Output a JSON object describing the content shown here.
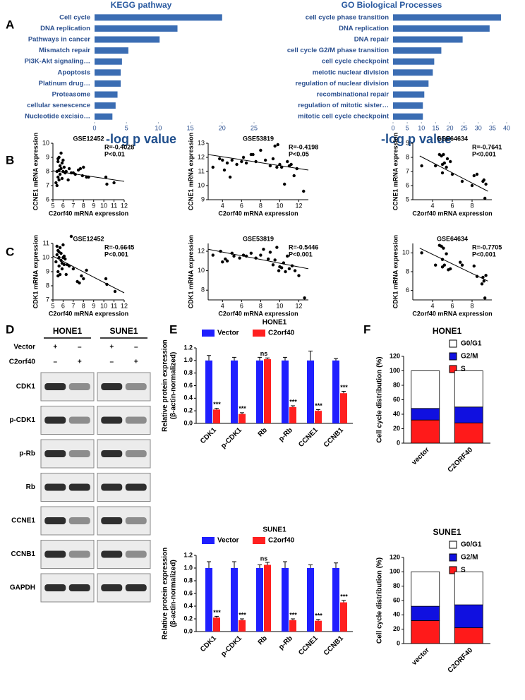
{
  "panel_labels": [
    "A",
    "B",
    "C",
    "D",
    "E",
    "F"
  ],
  "chart_data": [
    {
      "type": "hbar",
      "title": "KEGG pathway",
      "xlabel": "-log p value",
      "color": "#3b6db3",
      "categories": [
        "Cell cycle",
        "DNA replication",
        "Pathways in cancer",
        "Mismatch repair",
        "PI3K-Akt signaling…",
        "Apoptosis",
        "Platinum drug…",
        "Proteasome",
        "cellular senescence",
        "Nucleotide excisio…"
      ],
      "values": [
        20,
        13,
        10.2,
        5.3,
        4.3,
        4.1,
        4.1,
        3.6,
        3.3,
        2.8
      ],
      "xlim": [
        0,
        25
      ],
      "xticks": [
        0,
        5,
        10,
        15,
        20,
        25
      ]
    },
    {
      "type": "hbar",
      "title": "GO Biological Processes",
      "xlabel": "-log p value",
      "color": "#3b6db3",
      "categories": [
        "cell cycle phase transition",
        "DNA replication",
        "DNA repair",
        "cell cycle G2/M phase transition",
        "cell cycle checkpoint",
        "meiotic nuclear division",
        "regulation of nuclear division",
        "recombinational repair",
        "regulation of mitotic sister…",
        "mitotic cell cycle checkpoint"
      ],
      "values": [
        38,
        34,
        24.5,
        17,
        14.5,
        14,
        12.5,
        11,
        10.5,
        10.5
      ],
      "xlim": [
        0,
        40
      ],
      "xticks": [
        0,
        5,
        10,
        15,
        20,
        25,
        30,
        35,
        40
      ]
    },
    {
      "type": "scatter",
      "title": "GSE12452",
      "xlabel": "C2orf40 mRNA expression",
      "ylabel": "CCNE1 mRNA expression",
      "annotations": [
        "R=-0.4028",
        "P<0.01"
      ],
      "x": [
        5.3,
        5.4,
        5.5,
        5.5,
        5.6,
        5.6,
        5.7,
        5.7,
        5.8,
        5.8,
        5.9,
        5.9,
        6.0,
        6.0,
        6.1,
        6.2,
        6.3,
        6.5,
        6.6,
        7.0,
        7.2,
        7.5,
        7.7,
        7.9,
        8.0,
        8.3,
        8.5,
        10.2,
        10.3,
        11.0,
        5.4,
        5.6,
        6.8,
        5.5
      ],
      "values": [
        7.2,
        8.0,
        7.6,
        8.7,
        8.1,
        9.0,
        7.8,
        8.4,
        8.2,
        9.3,
        7.5,
        8.6,
        8.0,
        8.8,
        8.3,
        7.9,
        8.0,
        7.4,
        8.2,
        7.9,
        7.8,
        8.1,
        8.2,
        7.7,
        8.3,
        7.6,
        7.6,
        7.6,
        7.1,
        7.2,
        7.0,
        7.4,
        7.9,
        8.9
      ],
      "fit": {
        "x": [
          5,
          12
        ],
        "values": [
          8.05,
          7.3
        ]
      },
      "xlim": [
        5,
        12
      ],
      "xticks": [
        5,
        6,
        7,
        8,
        9,
        10,
        11,
        12
      ],
      "ylim": [
        6,
        10
      ],
      "yticks": [
        6,
        7,
        8,
        9,
        10
      ]
    },
    {
      "type": "scatter",
      "title": "GSE53819",
      "xlabel": "C2orf40 mRNA expression",
      "ylabel": "CCNE1 mRNA expression",
      "annotations": [
        "R=-0.4198",
        "P<0.05"
      ],
      "x": [
        3.0,
        3.7,
        4.0,
        4.2,
        4.5,
        4.8,
        5.0,
        5.5,
        6.0,
        6.2,
        6.5,
        7.0,
        7.2,
        7.5,
        8.0,
        8.5,
        9.0,
        9.3,
        9.5,
        9.7,
        9.8,
        10.0,
        10.2,
        10.5,
        10.8,
        11.0,
        11.2,
        11.5,
        11.8,
        12.5
      ],
      "values": [
        11.3,
        11.9,
        11.8,
        11.1,
        11.6,
        10.6,
        11.8,
        11.5,
        11.7,
        12.0,
        11.6,
        12.2,
        12.2,
        11.7,
        12.5,
        11.8,
        11.4,
        11.9,
        12.8,
        11.3,
        12.9,
        11.5,
        11.3,
        10.1,
        11.7,
        11.4,
        11.5,
        10.7,
        11.2,
        9.6
      ],
      "fit": {
        "x": [
          2.5,
          13
        ],
        "values": [
          12.2,
          11.1
        ]
      },
      "xlim": [
        2.5,
        13
      ],
      "xticks": [
        4,
        6,
        8,
        10,
        12
      ],
      "ylim": [
        9,
        13
      ],
      "yticks": [
        9,
        10,
        11,
        12,
        13
      ]
    },
    {
      "type": "scatter",
      "title": "GSE64634",
      "xlabel": "C2orf40 mRNA expression",
      "ylabel": "CCNE1 mRNA expression",
      "annotations": [
        "R=-0.7641",
        "P<0.001"
      ],
      "x": [
        2.9,
        4.3,
        4.7,
        4.9,
        5.0,
        5.1,
        5.2,
        5.0,
        5.4,
        5.5,
        5.8,
        6.0,
        7.0,
        8.0,
        8.2,
        8.5,
        9.2,
        9.3,
        9.4,
        9.1
      ],
      "values": [
        7.4,
        7.4,
        8.2,
        8.1,
        7.5,
        8.2,
        7.6,
        6.9,
        7.3,
        7.9,
        7.7,
        6.8,
        6.3,
        6.0,
        6.7,
        6.8,
        6.4,
        5.1,
        6.1,
        6.3
      ],
      "fit": {
        "x": [
          2.7,
          9.6
        ],
        "values": [
          8.1,
          5.6
        ]
      },
      "xlim": [
        2,
        10
      ],
      "xticks": [
        4,
        6,
        8
      ],
      "ylim": [
        5,
        9
      ],
      "yticks": [
        5,
        6,
        7,
        8,
        9
      ]
    },
    {
      "type": "scatter",
      "title": "GSE12452",
      "xlabel": "C2orf40 mRNA expression",
      "ylabel": "CDK1 mRNA expression",
      "annotations": [
        "R=-0.6645",
        "P<0.001"
      ],
      "x": [
        5.3,
        5.4,
        5.4,
        5.5,
        5.5,
        5.6,
        5.6,
        5.7,
        5.7,
        5.8,
        5.8,
        5.9,
        6.0,
        6.0,
        6.1,
        6.2,
        6.3,
        6.4,
        6.6,
        6.8,
        7.0,
        7.4,
        7.6,
        7.8,
        8.0,
        8.3,
        10.2,
        10.3,
        11.1,
        5.5,
        5.6,
        5.9,
        6.1
      ],
      "values": [
        9.7,
        10.8,
        10.2,
        9.0,
        10.5,
        10.0,
        9.4,
        10.7,
        8.8,
        10.3,
        9.8,
        9.2,
        10.0,
        10.9,
        9.5,
        9.9,
        8.8,
        9.5,
        9.4,
        11.5,
        9.2,
        8.3,
        8.2,
        8.7,
        8.5,
        9.1,
        8.5,
        8.1,
        7.6,
        8.7,
        10.4,
        9.6,
        10.1
      ],
      "fit": {
        "x": [
          5,
          12
        ],
        "values": [
          10.1,
          7.5
        ]
      },
      "xlim": [
        5,
        12
      ],
      "xticks": [
        5,
        6,
        7,
        8,
        9,
        10,
        11,
        12
      ],
      "ylim": [
        7,
        11
      ],
      "yticks": [
        7,
        8,
        9,
        10,
        11
      ]
    },
    {
      "type": "scatter",
      "title": "GSE53819",
      "xlabel": "C2orf40 mRNA expression",
      "ylabel": "CDK1 mRNA expression",
      "annotations": [
        "R=-0.5446",
        "P<0.001"
      ],
      "x": [
        3.0,
        3.8,
        4.0,
        4.3,
        4.5,
        5.0,
        5.2,
        5.8,
        6.2,
        6.5,
        7.0,
        7.5,
        8.0,
        8.3,
        8.8,
        9.0,
        9.3,
        9.5,
        9.7,
        10.0,
        10.2,
        10.4,
        10.6,
        10.8,
        11.0,
        11.3,
        11.6,
        12.0,
        12.6,
        9.9
      ],
      "values": [
        11.6,
        12.0,
        10.9,
        11.2,
        11.0,
        11.8,
        11.5,
        11.3,
        11.6,
        11.5,
        11.8,
        11.3,
        11.6,
        12.2,
        11.2,
        11.9,
        10.6,
        11.1,
        12.4,
        10.4,
        10.3,
        10.8,
        9.9,
        11.5,
        10.2,
        10.5,
        10.0,
        9.5,
        7.2,
        10.0
      ],
      "fit": {
        "x": [
          2.5,
          13
        ],
        "values": [
          12.2,
          10.2
        ]
      },
      "xlim": [
        2.5,
        13
      ],
      "xticks": [
        4,
        6,
        8,
        10,
        12
      ],
      "ylim": [
        7,
        12.8
      ],
      "yticks": [
        8,
        10,
        12
      ]
    },
    {
      "type": "scatter",
      "title": "GSE64634",
      "xlabel": "C2orf40 mRNA expression",
      "ylabel": "CDK1 mRNA expression",
      "annotations": [
        "R=-0.7705",
        "P<0.001"
      ],
      "x": [
        2.9,
        4.3,
        4.7,
        4.9,
        5.0,
        5.1,
        5.2,
        5.0,
        5.4,
        5.6,
        5.8,
        6.8,
        7.0,
        8.2,
        8.5,
        9.1,
        9.2,
        9.3,
        9.4,
        9.0
      ],
      "values": [
        10.0,
        8.7,
        10.8,
        10.7,
        9.3,
        10.5,
        8.7,
        8.5,
        9.9,
        8.2,
        8.3,
        9.0,
        8.7,
        8.6,
        7.5,
        7.4,
        7.0,
        5.2,
        7.6,
        6.7
      ],
      "fit": {
        "x": [
          2.7,
          9.6
        ],
        "values": [
          10.5,
          7.0
        ]
      },
      "xlim": [
        2,
        10
      ],
      "xticks": [
        4,
        6,
        8
      ],
      "ylim": [
        5,
        11
      ],
      "yticks": [
        6,
        8,
        10
      ]
    },
    {
      "type": "blot",
      "columns": [
        "HONE1",
        "SUNE1"
      ],
      "conditions": [
        {
          "name": "Vector",
          "marks": [
            "+",
            "–",
            "+",
            "–"
          ]
        },
        {
          "name": "C2orf40",
          "marks": [
            "–",
            "+",
            "–",
            "+"
          ]
        }
      ],
      "proteins": [
        "CDK1",
        "p-CDK1",
        "p-Rb",
        "Rb",
        "CCNE1",
        "CCNB1",
        "GAPDH"
      ]
    },
    {
      "type": "bar",
      "title": "HONE1",
      "ylabel": [
        "Relative protein expression",
        "(β-actin-normalized)"
      ],
      "categories": [
        "CDK1",
        "p-CDK1",
        "Rb",
        "p-Rb",
        "CCNE1",
        "CCNB1"
      ],
      "series": [
        {
          "name": "Vector",
          "color": "#1f1fff",
          "values": [
            1,
            1,
            1,
            1,
            1,
            1
          ],
          "errors": [
            0.08,
            0.05,
            0.05,
            0.05,
            0.15,
            0.03
          ]
        },
        {
          "name": "C2orf40",
          "color": "#ff2020",
          "values": [
            0.22,
            0.15,
            1.02,
            0.26,
            0.2,
            0.48
          ],
          "errors": [
            0.02,
            0.02,
            0.02,
            0.02,
            0.02,
            0.03
          ]
        }
      ],
      "annotations": [
        "***",
        "***",
        "ns",
        "***",
        "***",
        "***"
      ],
      "ylim": [
        0,
        1.2
      ],
      "yticks": [
        {
          "value": 0,
          "label": "0.0"
        },
        0.2,
        0.4,
        0.6,
        0.8,
        {
          "value": 1,
          "label": "1.0"
        },
        1.2
      ]
    },
    {
      "type": "bar",
      "title": "SUNE1",
      "ylabel": [
        "Relative protein expression",
        "(β-actin-normalized)"
      ],
      "categories": [
        "CDK1",
        "p-CDK1",
        "Rb",
        "p-Rb",
        "CCNE1",
        "CCNB1"
      ],
      "series": [
        {
          "name": "Vector",
          "color": "#1f1fff",
          "values": [
            1,
            1,
            1,
            1,
            1,
            1
          ],
          "errors": [
            0.1,
            0.1,
            0.05,
            0.1,
            0.05,
            0.08
          ]
        },
        {
          "name": "C2orf40",
          "color": "#ff2020",
          "values": [
            0.22,
            0.18,
            1.05,
            0.18,
            0.17,
            0.46
          ],
          "errors": [
            0.02,
            0.02,
            0.04,
            0.02,
            0.02,
            0.03
          ]
        }
      ],
      "annotations": [
        "***",
        "***",
        "ns",
        "***",
        "***",
        "***"
      ],
      "ylim": [
        0,
        1.2
      ],
      "yticks": [
        {
          "value": 0,
          "label": "0.0"
        },
        0.2,
        0.4,
        0.6,
        0.8,
        {
          "value": 1,
          "label": "1.0"
        },
        1.2
      ]
    },
    {
      "type": "stacked_bar",
      "title": "HONE1",
      "ylabel": "Cell cycle distribution (%)",
      "categories": [
        "vector",
        "C2ORF40"
      ],
      "series": [
        {
          "name": "S",
          "color": "#ff1a1a",
          "values": [
            32,
            28
          ]
        },
        {
          "name": "G2/M",
          "color": "#1010e0",
          "values": [
            16,
            22
          ]
        },
        {
          "name": "G0/G1",
          "color": "#ffffff",
          "values": [
            52,
            50
          ]
        }
      ],
      "ylim": [
        0,
        120
      ],
      "yticks": [
        0,
        20,
        40,
        60,
        80,
        100,
        120
      ]
    },
    {
      "type": "stacked_bar",
      "title": "SUNE1",
      "ylabel": "Cell cycle distribution (%)",
      "categories": [
        "vector",
        "C2ORF40"
      ],
      "series": [
        {
          "name": "S",
          "color": "#ff1a1a",
          "values": [
            32,
            22
          ]
        },
        {
          "name": "G2/M",
          "color": "#1010e0",
          "values": [
            20,
            32
          ]
        },
        {
          "name": "G0/G1",
          "color": "#ffffff",
          "values": [
            48,
            46
          ]
        }
      ],
      "ylim": [
        0,
        120
      ],
      "yticks": [
        0,
        20,
        40,
        60,
        80,
        100,
        120
      ]
    }
  ]
}
